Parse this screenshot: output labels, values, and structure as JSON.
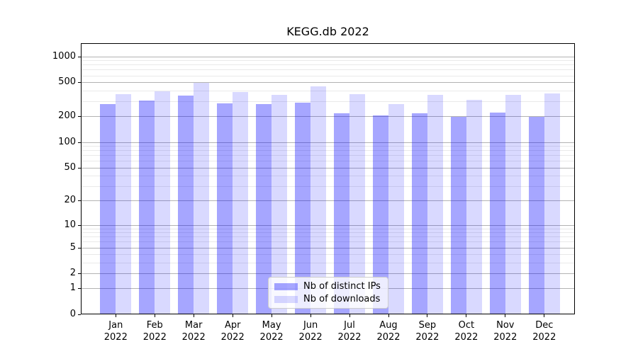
{
  "chart_data": {
    "type": "bar",
    "title": "KEGG.db 2022",
    "categories": [
      "Jan",
      "Feb",
      "Mar",
      "Apr",
      "May",
      "Jun",
      "Jul",
      "Aug",
      "Sep",
      "Oct",
      "Nov",
      "Dec"
    ],
    "x_tick_year_line": "2022",
    "series": [
      {
        "name": "Nb of distinct IPs",
        "color": "#0000FF59",
        "color_on_white": "#a6a6ff",
        "values": [
          277,
          305,
          348,
          282,
          280,
          290,
          216,
          206,
          219,
          197,
          222,
          198
        ]
      },
      {
        "name": "Nb of downloads",
        "color": "#0000FF26",
        "color_on_white": "#d9d9ff",
        "values": [
          364,
          395,
          489,
          383,
          359,
          445,
          366,
          277,
          354,
          310,
          359,
          371
        ]
      }
    ],
    "yscale": "log10(1+y)",
    "yticks": [
      0,
      1,
      2,
      5,
      10,
      20,
      50,
      100,
      200,
      500,
      1000
    ],
    "minor_grid_values": [
      3,
      4,
      6,
      7,
      8,
      9,
      30,
      40,
      60,
      70,
      80,
      90,
      300,
      400,
      600,
      700,
      800,
      900
    ],
    "ylim": [
      0,
      1425
    ],
    "grid": "on",
    "legend_position": "lower center",
    "xlabel": "",
    "ylabel": "",
    "colors": {
      "major_grid": "#b3b3b3",
      "minor_grid": "#e9e9e9",
      "spine": "#000000",
      "background": "#ffffff"
    }
  }
}
